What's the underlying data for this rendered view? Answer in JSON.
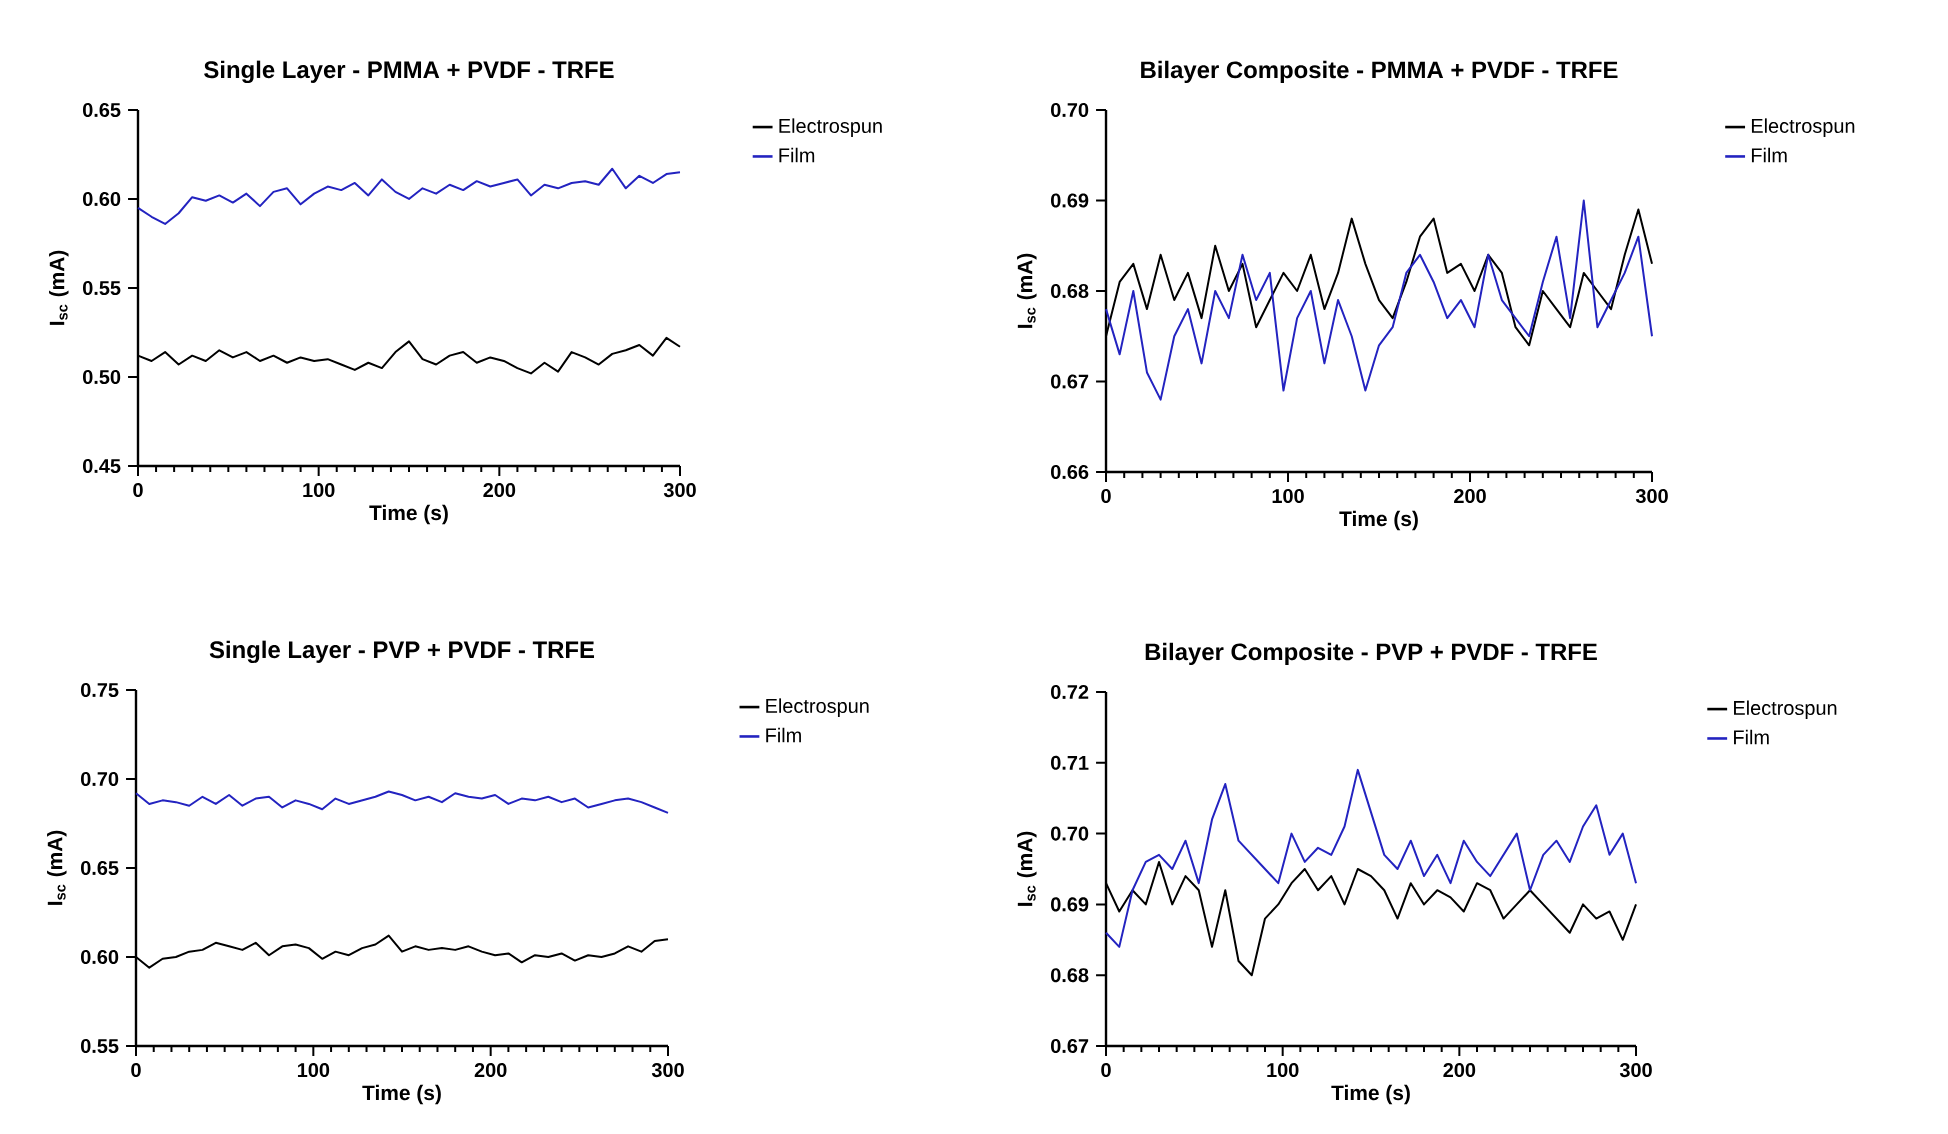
{
  "chart_data": [
    {
      "type": "line",
      "title": "Single Layer - PMMA + PVDF - TRFE",
      "xlabel": "Time (s)",
      "ylabel": "I$_{sc}$ (mA)",
      "xlim": [
        0,
        300
      ],
      "xticks": [
        0,
        100,
        200,
        300
      ],
      "ylim": [
        0.45,
        0.65
      ],
      "yticks": [
        {
          "value": 0.45,
          "label": "0.45"
        },
        {
          "value": 0.5,
          "label": "0.50"
        },
        {
          "value": 0.55,
          "label": "0.55"
        },
        {
          "value": 0.6,
          "label": "0.60"
        },
        {
          "value": 0.65,
          "label": "0.65"
        }
      ],
      "legend": "top right",
      "x": [
        0,
        7.5,
        15,
        22.5,
        30,
        37.5,
        45,
        52.5,
        60,
        67.5,
        75,
        82.5,
        90,
        97.5,
        105,
        112.5,
        120,
        127.5,
        135,
        142.5,
        150,
        157.5,
        165,
        172.5,
        180,
        187.5,
        195,
        202.5,
        210,
        217.5,
        225,
        232.5,
        240,
        247.5,
        255,
        262.5,
        270,
        277.5,
        285,
        292.5,
        300
      ],
      "series": [
        {
          "name": "Electrospun",
          "color": "#000000",
          "values": [
            0.512,
            0.509,
            0.514,
            0.507,
            0.512,
            0.509,
            0.515,
            0.511,
            0.514,
            0.509,
            0.512,
            0.508,
            0.511,
            0.509,
            0.51,
            0.507,
            0.504,
            0.508,
            0.505,
            0.514,
            0.52,
            0.51,
            0.507,
            0.512,
            0.514,
            0.508,
            0.511,
            0.509,
            0.505,
            0.502,
            0.508,
            0.503,
            0.514,
            0.511,
            0.507,
            0.513,
            0.515,
            0.518,
            0.512,
            0.522,
            0.517
          ]
        },
        {
          "name": "Film",
          "color": "#2323c0",
          "values": [
            0.595,
            0.59,
            0.586,
            0.592,
            0.601,
            0.599,
            0.602,
            0.598,
            0.603,
            0.596,
            0.604,
            0.606,
            0.597,
            0.603,
            0.607,
            0.605,
            0.609,
            0.602,
            0.611,
            0.604,
            0.6,
            0.606,
            0.603,
            0.608,
            0.605,
            0.61,
            0.607,
            0.609,
            0.611,
            0.602,
            0.608,
            0.606,
            0.609,
            0.61,
            0.608,
            0.617,
            0.606,
            0.613,
            0.609,
            0.614,
            0.615
          ]
        }
      ]
    },
    {
      "type": "line",
      "title": "Bilayer Composite - PMMA + PVDF - TRFE",
      "xlabel": "Time (s)",
      "ylabel": "I$_{sc}$ (mA)",
      "xlim": [
        0,
        300
      ],
      "xticks": [
        0,
        100,
        200,
        300
      ],
      "ylim": [
        0.66,
        0.7
      ],
      "yticks": [
        {
          "value": 0.66,
          "label": "0.66"
        },
        {
          "value": 0.67,
          "label": "0.67"
        },
        {
          "value": 0.68,
          "label": "0.68"
        },
        {
          "value": 0.69,
          "label": "0.69"
        },
        {
          "value": 0.7,
          "label": "0.70"
        }
      ],
      "legend": "top right",
      "x": [
        0,
        7.5,
        15,
        22.5,
        30,
        37.5,
        45,
        52.5,
        60,
        67.5,
        75,
        82.5,
        90,
        97.5,
        105,
        112.5,
        120,
        127.5,
        135,
        142.5,
        150,
        157.5,
        165,
        172.5,
        180,
        187.5,
        195,
        202.5,
        210,
        217.5,
        225,
        232.5,
        240,
        247.5,
        255,
        262.5,
        270,
        277.5,
        285,
        292.5,
        300
      ],
      "series": [
        {
          "name": "Electrospun",
          "color": "#000000",
          "values": [
            0.675,
            0.681,
            0.683,
            0.678,
            0.684,
            0.679,
            0.682,
            0.677,
            0.685,
            0.68,
            0.683,
            0.676,
            0.679,
            0.682,
            0.68,
            0.684,
            0.678,
            0.682,
            0.688,
            0.683,
            0.679,
            0.677,
            0.681,
            0.686,
            0.688,
            0.682,
            0.683,
            0.68,
            0.684,
            0.682,
            0.676,
            0.674,
            0.68,
            0.678,
            0.676,
            0.682,
            0.68,
            0.678,
            0.684,
            0.689,
            0.683
          ]
        },
        {
          "name": "Film",
          "color": "#2323c0",
          "values": [
            0.678,
            0.673,
            0.68,
            0.671,
            0.668,
            0.675,
            0.678,
            0.672,
            0.68,
            0.677,
            0.684,
            0.679,
            0.682,
            0.669,
            0.677,
            0.68,
            0.672,
            0.679,
            0.675,
            0.669,
            0.674,
            0.676,
            0.682,
            0.684,
            0.681,
            0.677,
            0.679,
            0.676,
            0.684,
            0.679,
            0.677,
            0.675,
            0.681,
            0.686,
            0.677,
            0.69,
            0.676,
            0.679,
            0.682,
            0.686,
            0.675
          ]
        }
      ]
    },
    {
      "type": "line",
      "title": "Single Layer - PVP + PVDF - TRFE",
      "xlabel": "Time (s)",
      "ylabel": "I$_{sc}$ (mA)",
      "xlim": [
        0,
        300
      ],
      "xticks": [
        0,
        100,
        200,
        300
      ],
      "ylim": [
        0.55,
        0.75
      ],
      "yticks": [
        {
          "value": 0.55,
          "label": "0.55"
        },
        {
          "value": 0.6,
          "label": "0.60"
        },
        {
          "value": 0.65,
          "label": "0.65"
        },
        {
          "value": 0.7,
          "label": "0.70"
        },
        {
          "value": 0.75,
          "label": "0.75"
        }
      ],
      "legend": "top right",
      "x": [
        0,
        7.5,
        15,
        22.5,
        30,
        37.5,
        45,
        52.5,
        60,
        67.5,
        75,
        82.5,
        90,
        97.5,
        105,
        112.5,
        120,
        127.5,
        135,
        142.5,
        150,
        157.5,
        165,
        172.5,
        180,
        187.5,
        195,
        202.5,
        210,
        217.5,
        225,
        232.5,
        240,
        247.5,
        255,
        262.5,
        270,
        277.5,
        285,
        292.5,
        300
      ],
      "series": [
        {
          "name": "Electrospun",
          "color": "#000000",
          "values": [
            0.6,
            0.594,
            0.599,
            0.6,
            0.603,
            0.604,
            0.608,
            0.606,
            0.604,
            0.608,
            0.601,
            0.606,
            0.607,
            0.605,
            0.599,
            0.603,
            0.601,
            0.605,
            0.607,
            0.612,
            0.603,
            0.606,
            0.604,
            0.605,
            0.604,
            0.606,
            0.603,
            0.601,
            0.602,
            0.597,
            0.601,
            0.6,
            0.602,
            0.598,
            0.601,
            0.6,
            0.602,
            0.606,
            0.603,
            0.609,
            0.61
          ]
        },
        {
          "name": "Film",
          "color": "#2323c0",
          "values": [
            0.692,
            0.686,
            0.688,
            0.687,
            0.685,
            0.69,
            0.686,
            0.691,
            0.685,
            0.689,
            0.69,
            0.684,
            0.688,
            0.686,
            0.683,
            0.689,
            0.686,
            0.688,
            0.69,
            0.693,
            0.691,
            0.688,
            0.69,
            0.687,
            0.692,
            0.69,
            0.689,
            0.691,
            0.686,
            0.689,
            0.688,
            0.69,
            0.687,
            0.689,
            0.684,
            0.686,
            0.688,
            0.689,
            0.687,
            0.684,
            0.681
          ]
        }
      ]
    },
    {
      "type": "line",
      "title": "Bilayer Composite - PVP + PVDF - TRFE",
      "xlabel": "Time (s)",
      "ylabel": "I$_{sc}$ (mA)",
      "xlim": [
        0,
        300
      ],
      "xticks": [
        0,
        100,
        200,
        300
      ],
      "ylim": [
        0.67,
        0.72
      ],
      "yticks": [
        {
          "value": 0.67,
          "label": "0.67"
        },
        {
          "value": 0.68,
          "label": "0.68"
        },
        {
          "value": 0.69,
          "label": "0.69"
        },
        {
          "value": 0.7,
          "label": "0.70"
        },
        {
          "value": 0.71,
          "label": "0.71"
        },
        {
          "value": 0.72,
          "label": "0.72"
        }
      ],
      "legend": "top right",
      "x": [
        0,
        7.5,
        15,
        22.5,
        30,
        37.5,
        45,
        52.5,
        60,
        67.5,
        75,
        82.5,
        90,
        97.5,
        105,
        112.5,
        120,
        127.5,
        135,
        142.5,
        150,
        157.5,
        165,
        172.5,
        180,
        187.5,
        195,
        202.5,
        210,
        217.5,
        225,
        232.5,
        240,
        247.5,
        255,
        262.5,
        270,
        277.5,
        285,
        292.5,
        300
      ],
      "series": [
        {
          "name": "Electrospun",
          "color": "#000000",
          "values": [
            0.693,
            0.689,
            0.692,
            0.69,
            0.696,
            0.69,
            0.694,
            0.692,
            0.684,
            0.692,
            0.682,
            0.68,
            0.688,
            0.69,
            0.693,
            0.695,
            0.692,
            0.694,
            0.69,
            0.695,
            0.694,
            0.692,
            0.688,
            0.693,
            0.69,
            0.692,
            0.691,
            0.689,
            0.693,
            0.692,
            0.688,
            0.69,
            0.692,
            0.69,
            0.688,
            0.686,
            0.69,
            0.688,
            0.689,
            0.685,
            0.69
          ]
        },
        {
          "name": "Film",
          "color": "#2323c0",
          "values": [
            0.686,
            0.684,
            0.692,
            0.696,
            0.697,
            0.695,
            0.699,
            0.693,
            0.702,
            0.707,
            0.699,
            0.697,
            0.695,
            0.693,
            0.7,
            0.696,
            0.698,
            0.697,
            0.701,
            0.709,
            0.703,
            0.697,
            0.695,
            0.699,
            0.694,
            0.697,
            0.693,
            0.699,
            0.696,
            0.694,
            0.697,
            0.7,
            0.692,
            0.697,
            0.699,
            0.696,
            0.701,
            0.704,
            0.697,
            0.7,
            0.693
          ]
        }
      ]
    }
  ]
}
